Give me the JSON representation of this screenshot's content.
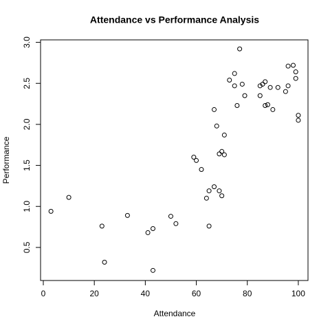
{
  "chart_data": {
    "type": "scatter",
    "title": "Attendance vs Performance Analysis",
    "x_label": "Attendance",
    "y_label": "Performance",
    "x": [
      3,
      10,
      23,
      24,
      33,
      41,
      43,
      43,
      50,
      52,
      59,
      60,
      62,
      64,
      65,
      65,
      67,
      67,
      68,
      69,
      69,
      70,
      70,
      71,
      71,
      73,
      75,
      75,
      76,
      77,
      78,
      79,
      85,
      85,
      86,
      87,
      87,
      88,
      89,
      90,
      92,
      95,
      96,
      96,
      98,
      99,
      99,
      100,
      100
    ],
    "values": [
      0.94,
      1.11,
      0.76,
      0.32,
      0.89,
      0.68,
      0.73,
      0.22,
      0.88,
      0.79,
      1.6,
      1.56,
      1.45,
      1.1,
      1.19,
      0.76,
      1.24,
      2.18,
      1.98,
      1.19,
      1.64,
      1.67,
      1.13,
      1.63,
      1.87,
      2.54,
      2.62,
      2.47,
      2.23,
      2.92,
      2.49,
      2.35,
      2.47,
      2.35,
      2.49,
      2.52,
      2.23,
      2.24,
      2.45,
      2.18,
      2.45,
      2.4,
      2.47,
      2.71,
      2.72,
      2.64,
      2.56,
      2.11,
      2.05
    ],
    "color": "#000000",
    "xlim": [
      -1.08,
      103.8
    ],
    "xticks": [
      0,
      20,
      40,
      60,
      80,
      100
    ],
    "ylim": [
      0.097,
      3.03
    ],
    "yticks": [
      0.5,
      1.0,
      1.5,
      2.0,
      2.5,
      3.0
    ],
    "grid": false
  }
}
